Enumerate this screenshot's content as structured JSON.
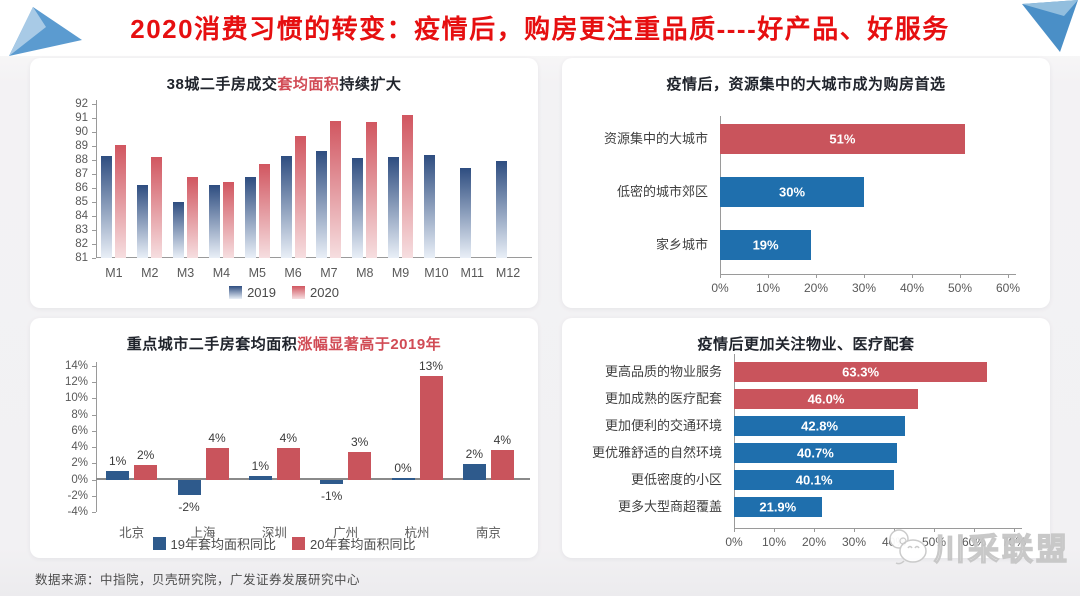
{
  "banner": {
    "title": "2020消费习惯的转变：疫情后，购房更注重品质----好产品、好服务",
    "title_color": "#e60f10"
  },
  "source_note": "数据来源：中指院，贝壳研究院，广发证券发展研究中心",
  "watermark": {
    "text": "川采联盟",
    "mascot_icon": "panda-chat-mascot"
  },
  "colors": {
    "bar_red": "#C9545C",
    "bar_blue": "#1F6FAD",
    "bar_navy": "#2E5A8C",
    "title_accent_red": "#d14b55",
    "decoration_blue": "#5b9bd0"
  },
  "chart_data": [
    {
      "type": "bar",
      "title": {
        "prefix": "38城二手房成交",
        "accent": "套均面积",
        "suffix": "持续扩大"
      },
      "categories": [
        "M1",
        "M2",
        "M3",
        "M4",
        "M5",
        "M6",
        "M7",
        "M8",
        "M9",
        "M10",
        "M11",
        "M12"
      ],
      "series": [
        {
          "name": "2019",
          "color_top": "#2E4D80",
          "color_bottom": "#E9EFF7",
          "values": [
            88.3,
            86.2,
            85.0,
            86.2,
            86.8,
            88.3,
            88.65,
            88.15,
            88.2,
            88.35,
            87.4,
            87.9
          ]
        },
        {
          "name": "2020",
          "color_top": "#D15660",
          "color_bottom": "#F6DEE0",
          "values": [
            89.05,
            88.2,
            86.8,
            86.4,
            87.75,
            89.75,
            90.8,
            90.75,
            91.2,
            null,
            null,
            null
          ]
        }
      ],
      "ylim": [
        81,
        92
      ],
      "ytick_step": 1,
      "ytick_suffix": "",
      "baseline": "min",
      "grid": false,
      "legend_position": "bottom"
    },
    {
      "type": "hbar",
      "title": "疫情后，资源集中的大城市成为购房首选",
      "categories": [
        "资源集中的大城市",
        "低密的城市郊区",
        "家乡城市"
      ],
      "values": [
        51,
        30,
        19
      ],
      "labels": [
        "51%",
        "30%",
        "19%"
      ],
      "bar_colors": [
        "#C9545C",
        "#1F6FAD",
        "#1F6FAD"
      ],
      "xlim": [
        0,
        60
      ],
      "xtick_step": 10,
      "grid": false
    },
    {
      "type": "bar",
      "title": {
        "prefix": "重点城市二手房套均面积",
        "accent": "涨幅显著高于2019年",
        "suffix": ""
      },
      "categories": [
        "北京",
        "上海",
        "深圳",
        "广州",
        "杭州",
        "南京"
      ],
      "series": [
        {
          "name": "19年套均面积同比",
          "color": "#2E5A8C",
          "values": [
            1,
            -1.9,
            0.5,
            -0.5,
            0.15,
            1.9
          ],
          "labels": [
            "1%",
            "-2%",
            "1%",
            "-1%",
            "0%",
            "2%"
          ]
        },
        {
          "name": "20年套均面积同比",
          "color": "#C9545C",
          "values": [
            1.8,
            3.9,
            3.9,
            3.4,
            12.8,
            3.6
          ],
          "labels": [
            "2%",
            "4%",
            "4%",
            "3%",
            "13%",
            "4%"
          ]
        }
      ],
      "ylim": [
        -4,
        14
      ],
      "ytick_step": 2,
      "ytick_suffix": "%",
      "baseline": "zero",
      "grid": false,
      "legend_position": "bottom"
    },
    {
      "type": "hbar",
      "title": "疫情后更加关注物业、医疗配套",
      "categories": [
        "更高品质的物业服务",
        "更加成熟的医疗配套",
        "更加便利的交通环境",
        "更优雅舒适的自然环境",
        "更低密度的小区",
        "更多大型商超覆盖"
      ],
      "values": [
        63.3,
        46.0,
        42.8,
        40.7,
        40.1,
        21.9
      ],
      "labels": [
        "63.3%",
        "46.0%",
        "42.8%",
        "40.7%",
        "40.1%",
        "21.9%"
      ],
      "bar_colors": [
        "#C9545C",
        "#C9545C",
        "#1F6FAD",
        "#1F6FAD",
        "#1F6FAD",
        "#1F6FAD"
      ],
      "xlim": [
        0,
        70
      ],
      "xtick_step": 10,
      "grid": false
    }
  ]
}
